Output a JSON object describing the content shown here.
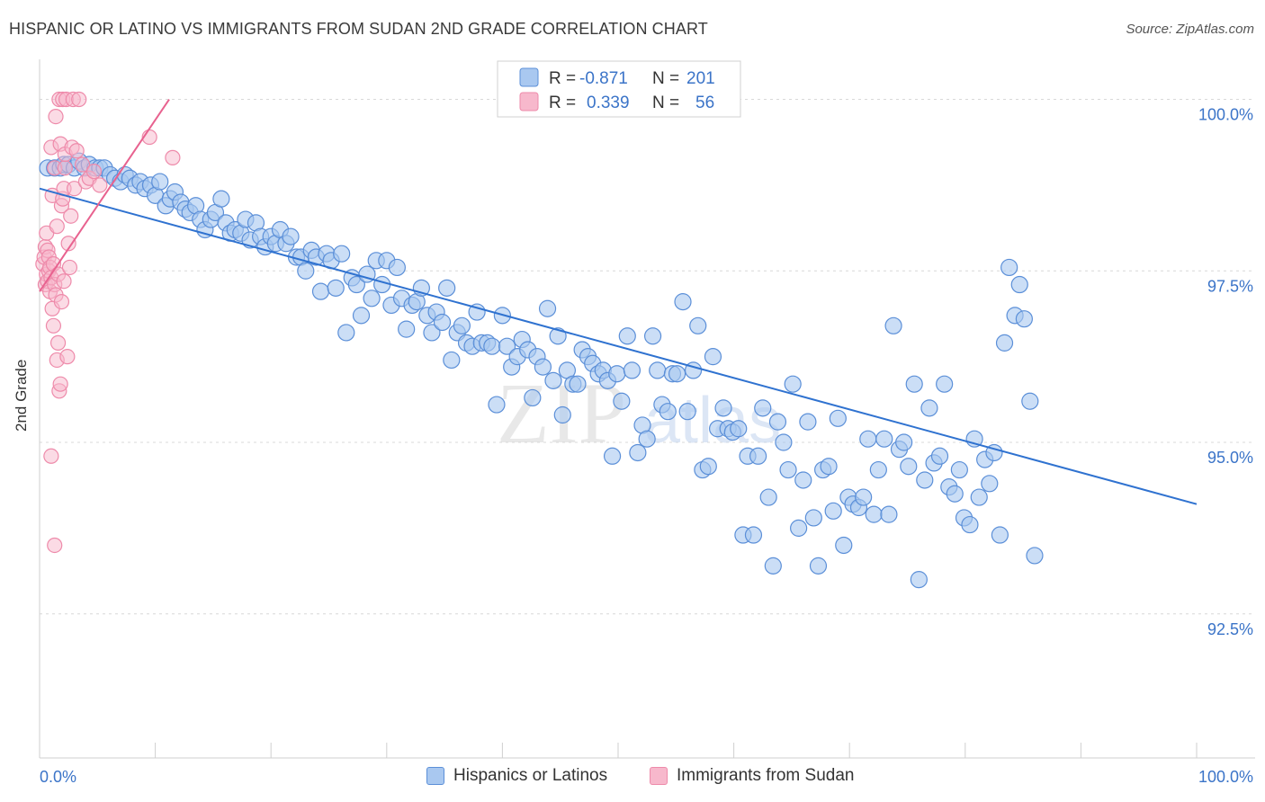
{
  "header": {
    "title": "HISPANIC OR LATINO VS IMMIGRANTS FROM SUDAN 2ND GRADE CORRELATION CHART",
    "source": "Source: ZipAtlas.com"
  },
  "watermark": {
    "zip": "ZIP",
    "atlas": "atlas"
  },
  "colors": {
    "blue_fill": "#a9c8f0",
    "blue_stroke": "#5b8fd8",
    "blue_line": "#2f72d0",
    "pink_fill": "#f7b8cc",
    "pink_stroke": "#ee8aaa",
    "pink_line": "#e8628f",
    "value_text": "#3b74c8",
    "grid": "#d8d8d8"
  },
  "stats_legend": {
    "rows": [
      {
        "r_label": "R =",
        "r_value": "-0.871",
        "n_label": "N =",
        "n_value": "201",
        "series": "blue"
      },
      {
        "r_label": "R =",
        "r_value": "0.339",
        "n_label": "N =",
        "n_value": "56",
        "series": "pink"
      }
    ]
  },
  "chart_data": {
    "type": "scatter",
    "title": "HISPANIC OR LATINO VS IMMIGRANTS FROM SUDAN 2ND GRADE CORRELATION CHART",
    "xlabel": "",
    "ylabel": "2nd Grade",
    "xlim": [
      0,
      100
    ],
    "ylim": [
      90.4,
      100.4
    ],
    "x_tick_labels": [
      "0.0%",
      "100.0%"
    ],
    "y_ticks": [
      92.5,
      95.0,
      97.5,
      100.0
    ],
    "y_tick_labels": [
      "92.5%",
      "95.0%",
      "97.5%",
      "100.0%"
    ],
    "grid": true,
    "legend_position": "bottom",
    "series": [
      {
        "name": "Hispanics or Latinos",
        "color": "#a9c8f0",
        "trend": {
          "x": [
            0,
            100
          ],
          "y": [
            98.7,
            94.1
          ]
        },
        "points": [
          [
            0.7,
            99.0
          ],
          [
            1.3,
            99.0
          ],
          [
            1.8,
            99.0
          ],
          [
            2.1,
            99.05
          ],
          [
            2.5,
            99.05
          ],
          [
            3.0,
            99.0
          ],
          [
            3.4,
            99.1
          ],
          [
            3.9,
            99.0
          ],
          [
            4.3,
            99.05
          ],
          [
            4.8,
            99.0
          ],
          [
            5.2,
            99.0
          ],
          [
            5.6,
            99.0
          ],
          [
            6.1,
            98.9
          ],
          [
            6.5,
            98.85
          ],
          [
            7.0,
            98.8
          ],
          [
            7.4,
            98.9
          ],
          [
            7.8,
            98.85
          ],
          [
            8.3,
            98.75
          ],
          [
            8.7,
            98.8
          ],
          [
            9.1,
            98.7
          ],
          [
            9.6,
            98.75
          ],
          [
            10.0,
            98.6
          ],
          [
            10.4,
            98.8
          ],
          [
            10.9,
            98.45
          ],
          [
            11.3,
            98.55
          ],
          [
            11.7,
            98.65
          ],
          [
            12.2,
            98.5
          ],
          [
            12.6,
            98.4
          ],
          [
            13.0,
            98.35
          ],
          [
            13.5,
            98.45
          ],
          [
            13.9,
            98.25
          ],
          [
            14.3,
            98.1
          ],
          [
            14.8,
            98.25
          ],
          [
            15.2,
            98.35
          ],
          [
            15.7,
            98.55
          ],
          [
            16.1,
            98.2
          ],
          [
            16.5,
            98.05
          ],
          [
            16.9,
            98.1
          ],
          [
            17.4,
            98.05
          ],
          [
            17.8,
            98.25
          ],
          [
            18.2,
            97.95
          ],
          [
            18.7,
            98.2
          ],
          [
            19.1,
            98.0
          ],
          [
            19.5,
            97.85
          ],
          [
            20.0,
            98.0
          ],
          [
            20.4,
            97.9
          ],
          [
            20.8,
            98.1
          ],
          [
            21.3,
            97.9
          ],
          [
            21.7,
            98.0
          ],
          [
            22.2,
            97.7
          ],
          [
            22.6,
            97.7
          ],
          [
            23.0,
            97.5
          ],
          [
            23.5,
            97.8
          ],
          [
            23.9,
            97.7
          ],
          [
            24.3,
            97.2
          ],
          [
            24.8,
            97.75
          ],
          [
            25.2,
            97.65
          ],
          [
            25.6,
            97.25
          ],
          [
            26.1,
            97.75
          ],
          [
            26.5,
            96.6
          ],
          [
            27.0,
            97.4
          ],
          [
            27.4,
            97.3
          ],
          [
            27.8,
            96.85
          ],
          [
            28.3,
            97.45
          ],
          [
            28.7,
            97.1
          ],
          [
            29.1,
            97.65
          ],
          [
            29.6,
            97.3
          ],
          [
            30.0,
            97.65
          ],
          [
            30.4,
            97.0
          ],
          [
            30.9,
            97.55
          ],
          [
            31.3,
            97.1
          ],
          [
            31.7,
            96.65
          ],
          [
            32.2,
            97.0
          ],
          [
            32.6,
            97.05
          ],
          [
            33.0,
            97.25
          ],
          [
            33.5,
            96.85
          ],
          [
            33.9,
            96.6
          ],
          [
            34.3,
            96.9
          ],
          [
            34.8,
            96.75
          ],
          [
            35.2,
            97.25
          ],
          [
            35.6,
            96.2
          ],
          [
            36.1,
            96.6
          ],
          [
            36.5,
            96.7
          ],
          [
            36.9,
            96.45
          ],
          [
            37.4,
            96.4
          ],
          [
            37.8,
            96.9
          ],
          [
            38.2,
            96.45
          ],
          [
            38.7,
            96.45
          ],
          [
            39.1,
            96.4
          ],
          [
            39.5,
            95.55
          ],
          [
            40.0,
            96.85
          ],
          [
            40.4,
            96.4
          ],
          [
            40.8,
            96.1
          ],
          [
            41.3,
            96.25
          ],
          [
            41.7,
            96.5
          ],
          [
            42.2,
            96.35
          ],
          [
            42.6,
            95.65
          ],
          [
            43.0,
            96.25
          ],
          [
            43.5,
            96.1
          ],
          [
            43.9,
            96.95
          ],
          [
            44.4,
            95.9
          ],
          [
            44.8,
            96.55
          ],
          [
            45.2,
            95.4
          ],
          [
            45.6,
            96.05
          ],
          [
            46.1,
            95.85
          ],
          [
            46.5,
            95.85
          ],
          [
            46.9,
            96.35
          ],
          [
            47.4,
            96.25
          ],
          [
            47.8,
            96.15
          ],
          [
            48.3,
            96.0
          ],
          [
            48.7,
            96.05
          ],
          [
            49.1,
            95.9
          ],
          [
            49.5,
            94.8
          ],
          [
            49.9,
            96.0
          ],
          [
            50.3,
            95.6
          ],
          [
            50.8,
            96.55
          ],
          [
            51.2,
            96.05
          ],
          [
            51.7,
            94.85
          ],
          [
            52.1,
            95.25
          ],
          [
            52.5,
            95.05
          ],
          [
            53.0,
            96.55
          ],
          [
            53.4,
            96.05
          ],
          [
            53.8,
            95.55
          ],
          [
            54.3,
            95.45
          ],
          [
            54.7,
            96.0
          ],
          [
            55.1,
            96.0
          ],
          [
            55.6,
            97.05
          ],
          [
            56.0,
            95.45
          ],
          [
            56.5,
            96.05
          ],
          [
            56.9,
            96.7
          ],
          [
            57.3,
            94.6
          ],
          [
            57.8,
            94.65
          ],
          [
            58.2,
            96.25
          ],
          [
            58.6,
            95.2
          ],
          [
            59.1,
            95.5
          ],
          [
            59.5,
            95.2
          ],
          [
            59.9,
            95.15
          ],
          [
            60.4,
            95.2
          ],
          [
            60.8,
            93.65
          ],
          [
            61.2,
            94.8
          ],
          [
            61.7,
            93.65
          ],
          [
            62.1,
            94.8
          ],
          [
            62.5,
            95.5
          ],
          [
            63.0,
            94.2
          ],
          [
            63.4,
            93.2
          ],
          [
            63.8,
            95.3
          ],
          [
            64.3,
            95.0
          ],
          [
            64.7,
            94.6
          ],
          [
            65.1,
            95.85
          ],
          [
            65.6,
            93.75
          ],
          [
            66.0,
            94.45
          ],
          [
            66.4,
            95.3
          ],
          [
            66.9,
            93.9
          ],
          [
            67.3,
            93.2
          ],
          [
            67.7,
            94.6
          ],
          [
            68.2,
            94.65
          ],
          [
            68.6,
            94.0
          ],
          [
            69.0,
            95.35
          ],
          [
            69.5,
            93.5
          ],
          [
            69.9,
            94.2
          ],
          [
            70.3,
            94.1
          ],
          [
            70.8,
            94.05
          ],
          [
            71.2,
            94.2
          ],
          [
            71.6,
            95.05
          ],
          [
            72.1,
            93.95
          ],
          [
            72.5,
            94.6
          ],
          [
            73.0,
            95.05
          ],
          [
            73.4,
            93.95
          ],
          [
            73.8,
            96.7
          ],
          [
            74.3,
            94.9
          ],
          [
            74.7,
            95.0
          ],
          [
            75.1,
            94.65
          ],
          [
            75.6,
            95.85
          ],
          [
            76.0,
            93.0
          ],
          [
            76.5,
            94.45
          ],
          [
            76.9,
            95.5
          ],
          [
            77.3,
            94.7
          ],
          [
            77.8,
            94.8
          ],
          [
            78.2,
            95.85
          ],
          [
            78.6,
            94.35
          ],
          [
            79.1,
            94.25
          ],
          [
            79.5,
            94.6
          ],
          [
            79.9,
            93.9
          ],
          [
            80.4,
            93.8
          ],
          [
            80.8,
            95.05
          ],
          [
            81.2,
            94.2
          ],
          [
            81.7,
            94.75
          ],
          [
            82.1,
            94.4
          ],
          [
            82.5,
            94.85
          ],
          [
            83.0,
            93.65
          ],
          [
            83.4,
            96.45
          ],
          [
            83.8,
            97.55
          ],
          [
            84.3,
            96.85
          ],
          [
            84.7,
            97.3
          ],
          [
            85.1,
            96.8
          ],
          [
            85.6,
            95.6
          ],
          [
            86.0,
            93.35
          ]
        ]
      },
      {
        "name": "Immigrants from Sudan",
        "color": "#f7b8cc",
        "trend": {
          "x": [
            0,
            11.2
          ],
          "y": [
            97.2,
            100.0
          ]
        },
        "points": [
          [
            0.3,
            97.6
          ],
          [
            0.4,
            97.7
          ],
          [
            0.5,
            97.3
          ],
          [
            0.5,
            97.85
          ],
          [
            0.6,
            98.05
          ],
          [
            0.6,
            97.45
          ],
          [
            0.7,
            97.35
          ],
          [
            0.7,
            97.8
          ],
          [
            0.8,
            97.5
          ],
          [
            0.8,
            97.7
          ],
          [
            0.9,
            97.2
          ],
          [
            0.9,
            97.55
          ],
          [
            1.0,
            99.3
          ],
          [
            1.0,
            97.4
          ],
          [
            1.1,
            96.95
          ],
          [
            1.1,
            98.6
          ],
          [
            1.2,
            97.6
          ],
          [
            1.2,
            96.7
          ],
          [
            1.3,
            99.0
          ],
          [
            1.3,
            97.3
          ],
          [
            1.4,
            99.75
          ],
          [
            1.4,
            97.15
          ],
          [
            1.5,
            96.2
          ],
          [
            1.5,
            98.15
          ],
          [
            1.6,
            97.45
          ],
          [
            1.6,
            96.45
          ],
          [
            1.7,
            100.0
          ],
          [
            1.7,
            95.75
          ],
          [
            1.8,
            99.35
          ],
          [
            1.8,
            95.85
          ],
          [
            1.9,
            98.45
          ],
          [
            1.9,
            97.05
          ],
          [
            2.0,
            98.55
          ],
          [
            2.0,
            100.0
          ],
          [
            2.1,
            97.35
          ],
          [
            2.1,
            98.7
          ],
          [
            2.2,
            99.0
          ],
          [
            2.2,
            99.2
          ],
          [
            2.3,
            100.0
          ],
          [
            2.4,
            96.25
          ],
          [
            2.5,
            97.9
          ],
          [
            2.6,
            97.55
          ],
          [
            2.7,
            98.3
          ],
          [
            2.8,
            99.3
          ],
          [
            2.9,
            100.0
          ],
          [
            3.0,
            98.7
          ],
          [
            3.2,
            99.25
          ],
          [
            3.4,
            100.0
          ],
          [
            3.7,
            99.05
          ],
          [
            4.0,
            98.8
          ],
          [
            4.3,
            98.85
          ],
          [
            4.7,
            98.95
          ],
          [
            5.2,
            98.75
          ],
          [
            9.5,
            99.45
          ],
          [
            11.5,
            99.15
          ],
          [
            1.0,
            94.8
          ],
          [
            1.3,
            93.5
          ]
        ]
      }
    ]
  },
  "bottom_legend": {
    "items": [
      {
        "label": "Hispanics or Latinos",
        "series": "blue"
      },
      {
        "label": "Immigrants from Sudan",
        "series": "pink"
      }
    ]
  }
}
